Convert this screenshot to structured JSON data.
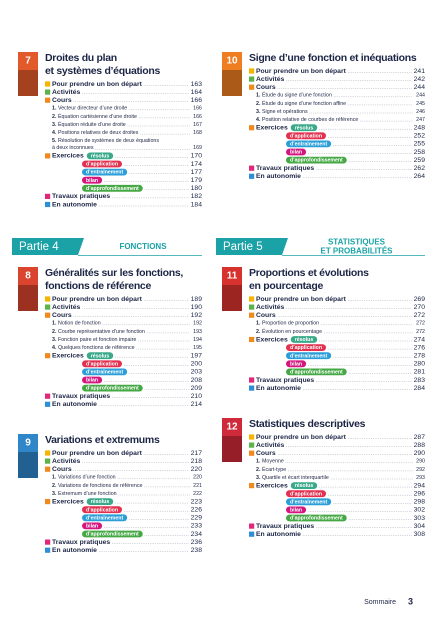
{
  "columns": [
    [
      {
        "chapter": {
          "number": 7,
          "color": "#e35a2a",
          "title": [
            "Droites du plan",
            "et systèmes d’équations"
          ],
          "entries": [
            {
              "label": "Pour prendre un bon départ",
              "color": "#f4b400",
              "page": 163
            },
            {
              "label": "Activités",
              "color": "#5bb44a",
              "page": 164
            },
            {
              "label": "Cours",
              "color": "#f08a1c",
              "page": 166
            },
            {
              "num": "1.",
              "label": "Vecteur directeur d’une droite",
              "page": 166
            },
            {
              "num": "2.",
              "label": "Équation cartésienne d’une droite",
              "page": 166
            },
            {
              "num": "3.",
              "label": "Équation réduite d’une droite",
              "page": 167
            },
            {
              "num": "4.",
              "label": "Positions relatives de deux droites",
              "page": 168
            },
            {
              "num": "5.",
              "label": [
                "Résolution de systèmes de deux équations",
                "à deux inconnues"
              ],
              "page": 169
            },
            {
              "label": "Exercices",
              "color": "#f08a1c",
              "tag": "résolus",
              "tag_color": "#3aa98a",
              "page": 170
            },
            {
              "tag": "d’application",
              "tag_color": "#e2304f",
              "page": 174
            },
            {
              "tag": "d’entraînement",
              "tag_color": "#2b9ed8",
              "page": 177
            },
            {
              "tag": "bilan",
              "tag_color": "#d4177f",
              "page": 179
            },
            {
              "tag": "d’approfondissement",
              "tag_color": "#45a845",
              "page": 180
            },
            {
              "label": "Travaux pratiques",
              "color": "#e0277b",
              "page": 182
            },
            {
              "label": "En autonomie",
              "color": "#2d8fd4",
              "page": 184
            }
          ]
        }
      },
      {
        "part": {
          "label": "Partie 4",
          "title": [
            "FONCTIONS"
          ]
        }
      },
      {
        "chapter": {
          "number": 8,
          "color": "#d9452e",
          "title": [
            "Généralités sur les fonctions,",
            "fonctions de référence"
          ],
          "entries": [
            {
              "label": "Pour prendre un bon départ",
              "color": "#f4b400",
              "page": 189
            },
            {
              "label": "Activités",
              "color": "#5bb44a",
              "page": 190
            },
            {
              "label": "Cours",
              "color": "#f08a1c",
              "page": 192
            },
            {
              "num": "1.",
              "label": "Notion de fonction",
              "page": 192
            },
            {
              "num": "2.",
              "label": "Courbe représentative d’une fonction",
              "page": 193
            },
            {
              "num": "3.",
              "label": "Fonction paire et fonction impaire",
              "page": 194
            },
            {
              "num": "4.",
              "label": "Quelques fonctions de référence",
              "page": 195
            },
            {
              "label": "Exercices",
              "color": "#f08a1c",
              "tag": "résolus",
              "tag_color": "#3aa98a",
              "page": 197
            },
            {
              "tag": "d’application",
              "tag_color": "#e2304f",
              "page": 200
            },
            {
              "tag": "d’entraînement",
              "tag_color": "#2b9ed8",
              "page": 203
            },
            {
              "tag": "bilan",
              "tag_color": "#d4177f",
              "page": 208
            },
            {
              "tag": "d’approfondissement",
              "tag_color": "#45a845",
              "page": 209
            },
            {
              "label": "Travaux pratiques",
              "color": "#e0277b",
              "page": 210
            },
            {
              "label": "En autonomie",
              "color": "#2d8fd4",
              "page": 214
            }
          ]
        }
      },
      {
        "chapter": {
          "number": 9,
          "color": "#2f86c8",
          "title": [
            "Variations et extremums"
          ],
          "entries": [
            {
              "label": "Pour prendre un bon départ",
              "color": "#f4b400",
              "page": 217
            },
            {
              "label": "Activités",
              "color": "#5bb44a",
              "page": 218
            },
            {
              "label": "Cours",
              "color": "#f08a1c",
              "page": 220
            },
            {
              "num": "1.",
              "label": "Variations d’une fonction",
              "page": 220
            },
            {
              "num": "2.",
              "label": "Variations de fonctions de référence",
              "page": 221
            },
            {
              "num": "3.",
              "label": "Extremum d’une fonction",
              "page": 222
            },
            {
              "label": "Exercices",
              "color": "#f08a1c",
              "tag": "résolus",
              "tag_color": "#3aa98a",
              "page": 223
            },
            {
              "tag": "d’application",
              "tag_color": "#e2304f",
              "page": 226
            },
            {
              "tag": "d’entraînement",
              "tag_color": "#2b9ed8",
              "page": 229
            },
            {
              "tag": "bilan",
              "tag_color": "#d4177f",
              "page": 233
            },
            {
              "tag": "d’approfondissement",
              "tag_color": "#45a845",
              "page": 234
            },
            {
              "label": "Travaux pratiques",
              "color": "#e0277b",
              "page": 236
            },
            {
              "label": "En autonomie",
              "color": "#2d8fd4",
              "page": 238
            }
          ]
        }
      }
    ],
    [
      {
        "chapter": {
          "number": 10,
          "color": "#ef7d22",
          "title": [
            "Signe d’une fonction et inéquations"
          ],
          "entries": [
            {
              "label": "Pour prendre un bon départ",
              "color": "#f4b400",
              "page": 241
            },
            {
              "label": "Activités",
              "color": "#5bb44a",
              "page": 242
            },
            {
              "label": "Cours",
              "color": "#f08a1c",
              "page": 244
            },
            {
              "num": "1.",
              "label": "Étude du signe d’une fonction",
              "page": 244
            },
            {
              "num": "2.",
              "label": "Étude du signe d’une fonction affine",
              "page": 245
            },
            {
              "num": "3.",
              "label": "Signe et opérations",
              "page": 246
            },
            {
              "num": "4.",
              "label": "Position relative de courbes de référence",
              "page": 247
            },
            {
              "label": "Exercices",
              "color": "#f08a1c",
              "tag": "résolus",
              "tag_color": "#3aa98a",
              "page": 248
            },
            {
              "tag": "d’application",
              "tag_color": "#e2304f",
              "page": 252
            },
            {
              "tag": "d’entraînement",
              "tag_color": "#2b9ed8",
              "page": 255
            },
            {
              "tag": "bilan",
              "tag_color": "#d4177f",
              "page": 258
            },
            {
              "tag": "d’approfondissement",
              "tag_color": "#45a845",
              "page": 259
            },
            {
              "label": "Travaux pratiques",
              "color": "#e0277b",
              "page": 262
            },
            {
              "label": "En autonomie",
              "color": "#2d8fd4",
              "page": 264
            }
          ]
        }
      },
      {
        "part": {
          "label": "Partie 5",
          "title": [
            "STATISTIQUES",
            "ET PROBABILITÉS"
          ]
        }
      },
      {
        "chapter": {
          "number": 11,
          "color": "#d8322e",
          "title": [
            "Proportions et évolutions",
            "en pourcentage"
          ],
          "entries": [
            {
              "label": "Pour prendre un bon départ",
              "color": "#f4b400",
              "page": 269
            },
            {
              "label": "Activités",
              "color": "#5bb44a",
              "page": 270
            },
            {
              "label": "Cours",
              "color": "#f08a1c",
              "page": 272
            },
            {
              "num": "1.",
              "label": "Proportion de proportion",
              "page": 272
            },
            {
              "num": "2.",
              "label": "Évolution en pourcentage",
              "page": 272
            },
            {
              "label": "Exercices",
              "color": "#f08a1c",
              "tag": "résolus",
              "tag_color": "#3aa98a",
              "page": 274
            },
            {
              "tag": "d’application",
              "tag_color": "#e2304f",
              "page": 276
            },
            {
              "tag": "d’entraînement",
              "tag_color": "#2b9ed8",
              "page": 278
            },
            {
              "tag": "bilan",
              "tag_color": "#d4177f",
              "page": 280
            },
            {
              "tag": "d’approfondissement",
              "tag_color": "#45a845",
              "page": 281
            },
            {
              "label": "Travaux pratiques",
              "color": "#e0277b",
              "page": 283
            },
            {
              "label": "En autonomie",
              "color": "#2d8fd4",
              "page": 284
            }
          ]
        }
      },
      {
        "chapter": {
          "number": 12,
          "color": "#cf2a3a",
          "title": [
            "Statistiques descriptives"
          ],
          "entries": [
            {
              "label": "Pour prendre un bon départ",
              "color": "#f4b400",
              "page": 287
            },
            {
              "label": "Activités",
              "color": "#5bb44a",
              "page": 288
            },
            {
              "label": "Cours",
              "color": "#f08a1c",
              "page": 290
            },
            {
              "num": "1.",
              "label": "Moyenne",
              "page": 290
            },
            {
              "num": "2.",
              "label": "Écart-type",
              "page": 292
            },
            {
              "num": "3.",
              "label": "Quartile et écart interquartile",
              "page": 293
            },
            {
              "label": "Exercices",
              "color": "#f08a1c",
              "tag": "résolus",
              "tag_color": "#3aa98a",
              "page": 294
            },
            {
              "tag": "d’application",
              "tag_color": "#e2304f",
              "page": 296
            },
            {
              "tag": "d’entraînement",
              "tag_color": "#2b9ed8",
              "page": 298
            },
            {
              "tag": "bilan",
              "tag_color": "#d4177f",
              "page": 302
            },
            {
              "tag": "d’approfondissement",
              "tag_color": "#45a845",
              "page": 303
            },
            {
              "label": "Travaux pratiques",
              "color": "#e0277b",
              "page": 304
            },
            {
              "label": "En autonomie",
              "color": "#2d8fd4",
              "page": 308
            }
          ]
        }
      }
    ]
  ],
  "footer": {
    "label": "Sommaire",
    "page": 3
  }
}
